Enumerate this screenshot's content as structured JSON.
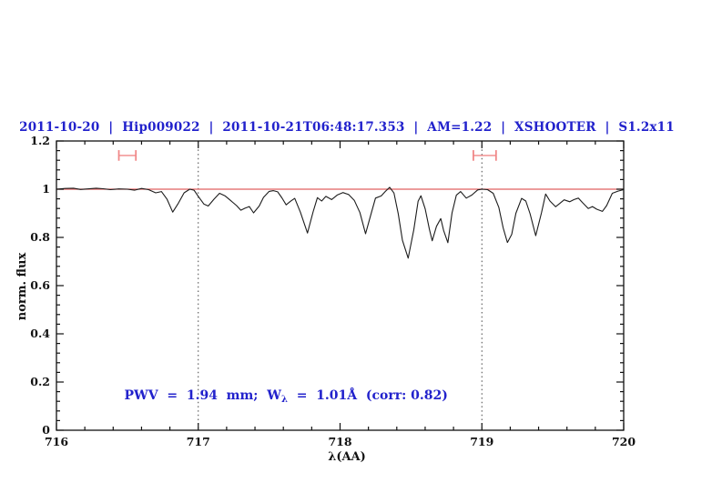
{
  "header": {
    "title": "2011-10-20  |  Hip009022  |  2011-10-21T06:48:17.353  |  AM=1.22  |  XSHOOTER  |  S1.2x11"
  },
  "annotation": {
    "prefix": "PWV  =  1.94  mm;  W",
    "sub": "λ",
    "suffix": "  =  1.01Å  (corr: 0.82)"
  },
  "colors": {
    "accent_blue": "#2222cc",
    "continuum_red": "#e06060",
    "marker_red": "#f08888",
    "spectrum_black": "#1c1c1c",
    "boundary_gray": "#444444",
    "frame_black": "#111111"
  },
  "chart_data": {
    "type": "line",
    "title": "2011-10-20 | Hip009022 | 2011-10-21T06:48:17.353 | AM=1.22 | XSHOOTER | S1.2x11",
    "xlabel": "λ(AA)",
    "ylabel": "norm. flux",
    "xlim": [
      716,
      720
    ],
    "ylim": [
      0,
      1.2
    ],
    "x_ticks": [
      716,
      717,
      718,
      719,
      720
    ],
    "x_tick_labels": [
      "716",
      "717",
      "718",
      "719",
      "720"
    ],
    "y_ticks": [
      0,
      0.2,
      0.4,
      0.6,
      0.8,
      1,
      1.2
    ],
    "y_tick_labels": [
      "0",
      "0.2",
      "0.4",
      "0.6",
      "0.8",
      "1",
      "1.2"
    ],
    "x_minor_step": 0.2,
    "y_minor_step": 0.04,
    "grid": false,
    "continuum_y": 1.0,
    "boundary_lines": [
      717,
      719
    ],
    "telluric_markers": [
      {
        "x_min": 716.44,
        "x_max": 716.56,
        "y": 1.14,
        "cap_half_height": 0.022
      },
      {
        "x_min": 718.94,
        "x_max": 719.1,
        "y": 1.14,
        "cap_half_height": 0.022
      }
    ],
    "annotation_text": "PWV = 1.94 mm; W_λ = 1.01Å (corr: 0.82)",
    "annotation_position": {
      "x": 716.36,
      "y": 0.2
    },
    "series": [
      {
        "name": "normalized telluric spectrum",
        "points": [
          [
            716.0,
            1.0
          ],
          [
            716.06,
            1.003
          ],
          [
            716.12,
            1.004
          ],
          [
            716.17,
            0.999
          ],
          [
            716.22,
            1.001
          ],
          [
            716.28,
            1.004
          ],
          [
            716.33,
            1.002
          ],
          [
            716.38,
            0.998
          ],
          [
            716.44,
            1.001
          ],
          [
            716.5,
            1.0
          ],
          [
            716.55,
            0.996
          ],
          [
            716.6,
            1.003
          ],
          [
            716.65,
            0.998
          ],
          [
            716.7,
            0.985
          ],
          [
            716.74,
            0.99
          ],
          [
            716.78,
            0.958
          ],
          [
            716.82,
            0.905
          ],
          [
            716.86,
            0.942
          ],
          [
            716.9,
            0.985
          ],
          [
            716.94,
            1.0
          ],
          [
            716.97,
            0.996
          ],
          [
            717.0,
            0.97
          ],
          [
            717.04,
            0.938
          ],
          [
            717.07,
            0.93
          ],
          [
            717.11,
            0.958
          ],
          [
            717.15,
            0.983
          ],
          [
            717.19,
            0.972
          ],
          [
            717.23,
            0.952
          ],
          [
            717.27,
            0.932
          ],
          [
            717.3,
            0.913
          ],
          [
            717.33,
            0.921
          ],
          [
            717.36,
            0.928
          ],
          [
            717.39,
            0.902
          ],
          [
            717.43,
            0.93
          ],
          [
            717.46,
            0.966
          ],
          [
            717.5,
            0.991
          ],
          [
            717.53,
            0.994
          ],
          [
            717.56,
            0.989
          ],
          [
            717.59,
            0.964
          ],
          [
            717.62,
            0.935
          ],
          [
            717.65,
            0.95
          ],
          [
            717.68,
            0.962
          ],
          [
            717.72,
            0.905
          ],
          [
            717.77,
            0.818
          ],
          [
            717.81,
            0.906
          ],
          [
            717.84,
            0.965
          ],
          [
            717.87,
            0.951
          ],
          [
            717.9,
            0.97
          ],
          [
            717.94,
            0.957
          ],
          [
            717.98,
            0.976
          ],
          [
            718.02,
            0.986
          ],
          [
            718.06,
            0.978
          ],
          [
            718.1,
            0.954
          ],
          [
            718.14,
            0.903
          ],
          [
            718.18,
            0.815
          ],
          [
            718.22,
            0.901
          ],
          [
            718.25,
            0.963
          ],
          [
            718.29,
            0.972
          ],
          [
            718.32,
            0.991
          ],
          [
            718.35,
            1.008
          ],
          [
            718.38,
            0.984
          ],
          [
            718.41,
            0.898
          ],
          [
            718.44,
            0.788
          ],
          [
            718.48,
            0.714
          ],
          [
            718.52,
            0.832
          ],
          [
            718.55,
            0.95
          ],
          [
            718.57,
            0.973
          ],
          [
            718.6,
            0.918
          ],
          [
            718.63,
            0.834
          ],
          [
            718.65,
            0.786
          ],
          [
            718.68,
            0.846
          ],
          [
            718.71,
            0.878
          ],
          [
            718.73,
            0.829
          ],
          [
            718.76,
            0.778
          ],
          [
            718.79,
            0.902
          ],
          [
            718.82,
            0.975
          ],
          [
            718.85,
            0.99
          ],
          [
            718.89,
            0.963
          ],
          [
            718.93,
            0.976
          ],
          [
            718.97,
            0.997
          ],
          [
            719.0,
            1.0
          ],
          [
            719.04,
            0.998
          ],
          [
            719.08,
            0.983
          ],
          [
            719.12,
            0.924
          ],
          [
            719.15,
            0.84
          ],
          [
            719.18,
            0.779
          ],
          [
            719.21,
            0.812
          ],
          [
            719.24,
            0.9
          ],
          [
            719.28,
            0.962
          ],
          [
            719.31,
            0.951
          ],
          [
            719.34,
            0.898
          ],
          [
            719.38,
            0.807
          ],
          [
            719.42,
            0.902
          ],
          [
            719.45,
            0.98
          ],
          [
            719.48,
            0.951
          ],
          [
            719.52,
            0.927
          ],
          [
            719.55,
            0.941
          ],
          [
            719.58,
            0.956
          ],
          [
            719.62,
            0.948
          ],
          [
            719.65,
            0.957
          ],
          [
            719.68,
            0.963
          ],
          [
            719.71,
            0.944
          ],
          [
            719.75,
            0.92
          ],
          [
            719.78,
            0.928
          ],
          [
            719.81,
            0.917
          ],
          [
            719.85,
            0.908
          ],
          [
            719.88,
            0.932
          ],
          [
            719.92,
            0.983
          ],
          [
            719.96,
            0.992
          ],
          [
            720.0,
            0.998
          ]
        ]
      }
    ]
  }
}
